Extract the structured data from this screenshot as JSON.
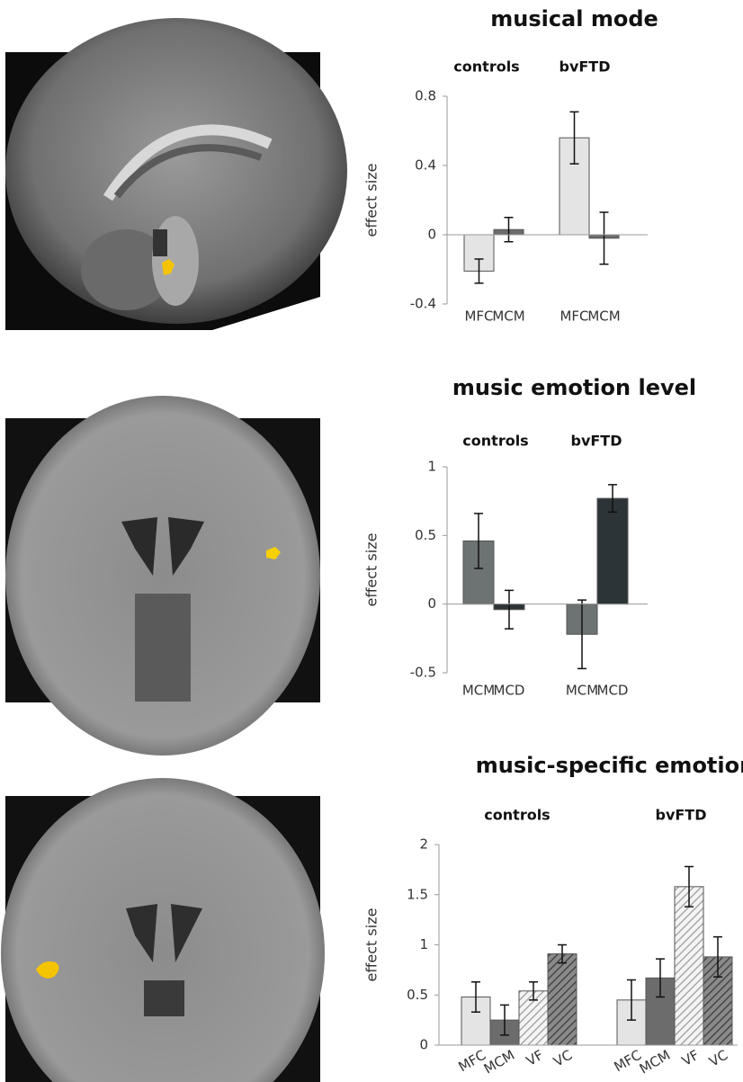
{
  "chart_data": [
    {
      "type": "bar",
      "title": "musical mode",
      "y_label": "effect size",
      "group_labels": [
        "controls",
        "bvFTD"
      ],
      "categories": [
        "MFC",
        "MCM",
        "MFC",
        "MCM"
      ],
      "values": [
        -0.21,
        0.03,
        0.56,
        -0.02
      ],
      "errors": [
        0.07,
        0.07,
        0.15,
        0.15
      ],
      "colors": [
        "#e4e4e4",
        "#6c6c6c",
        "#e4e4e4",
        "#6c6c6c"
      ],
      "hatched": [
        false,
        false,
        false,
        false
      ],
      "ylim": [
        -0.4,
        0.8
      ],
      "yticks": [
        -0.4,
        0,
        0.4,
        0.8
      ]
    },
    {
      "type": "bar",
      "title": "music emotion level",
      "y_label": "effect size",
      "group_labels": [
        "controls",
        "bvFTD"
      ],
      "categories": [
        "MCM",
        "MCD",
        "MCM",
        "MCD"
      ],
      "values": [
        0.46,
        -0.04,
        -0.22,
        0.77
      ],
      "errors": [
        0.2,
        0.14,
        0.25,
        0.1
      ],
      "colors": [
        "#6d7272",
        "#2d3437",
        "#6d7272",
        "#2d3437"
      ],
      "hatched": [
        false,
        false,
        false,
        false
      ],
      "ylim": [
        -0.5,
        1
      ],
      "yticks": [
        -0.5,
        0,
        0.5,
        1
      ]
    },
    {
      "type": "bar",
      "title": "music-specific emotion",
      "y_label": "effect size",
      "group_labels": [
        "controls",
        "bvFTD"
      ],
      "categories": [
        "MFC",
        "MCM",
        "VF",
        "VC",
        "MFC",
        "MCM",
        "VF",
        "VC"
      ],
      "values": [
        0.48,
        0.25,
        0.54,
        0.91,
        0.45,
        0.67,
        1.58,
        0.88
      ],
      "errors": [
        0.15,
        0.15,
        0.09,
        0.09,
        0.2,
        0.19,
        0.2,
        0.2
      ],
      "colors": [
        "#e4e4e4",
        "#6c6c6c",
        "#e4e4e4",
        "#6c6c6c",
        "#e4e4e4",
        "#6c6c6c",
        "#e4e4e4",
        "#6c6c6c"
      ],
      "hatched": [
        false,
        false,
        true,
        true,
        false,
        false,
        true,
        true
      ],
      "ylim": [
        0,
        2
      ],
      "yticks": [
        0,
        0.5,
        1,
        1.5,
        2
      ]
    }
  ]
}
